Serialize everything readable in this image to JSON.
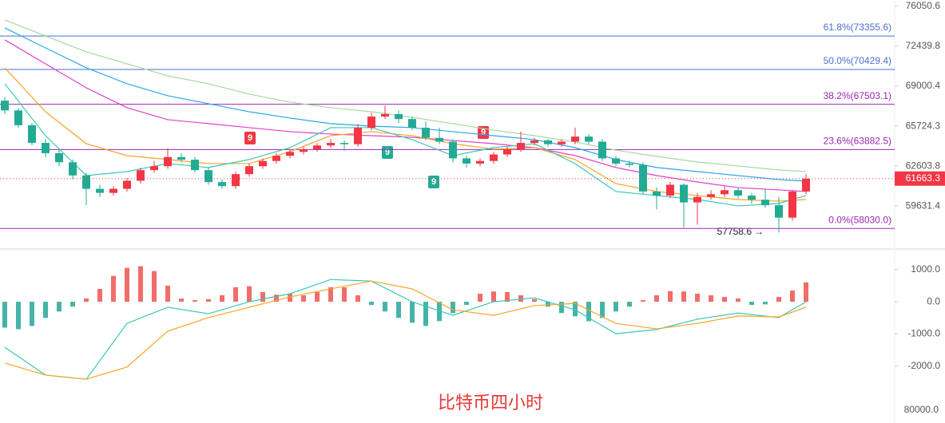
{
  "title": "比特币四小时",
  "chart_data": [
    {
      "type": "candlestick",
      "log_scale": true,
      "up_color": "#f23645",
      "down_color": "#22ab94",
      "ylim": [
        57260,
        76640
      ],
      "yticks": [
        76050.6,
        72439.8,
        69000.4,
        65724.3,
        62603.8,
        59631.4
      ],
      "fib_levels": [
        {
          "value": 73355.6,
          "label": "61.8%(73355.6)",
          "color": "#4a6fd1"
        },
        {
          "value": 70429.4,
          "label": "50.0%(70429.4)",
          "color": "#4a6fd1"
        },
        {
          "value": 67503.1,
          "label": "38.2%(67503.1)",
          "color": "#9c27b0"
        },
        {
          "value": 63882.5,
          "label": "23.6%(63882.5)",
          "color": "#9c27b0"
        },
        {
          "value": 58030.0,
          "label": "0.0%(58030.0)",
          "color": "#9c27b0"
        }
      ],
      "candles": [
        [
          67800,
          68100,
          66700,
          67000
        ],
        [
          67000,
          67200,
          65600,
          65800
        ],
        [
          65800,
          66000,
          64200,
          64400
        ],
        [
          64400,
          64700,
          63300,
          63600
        ],
        [
          63600,
          63900,
          62600,
          62900
        ],
        [
          62900,
          63100,
          61600,
          61900
        ],
        [
          61900,
          62100,
          59700,
          60900
        ],
        [
          60900,
          61200,
          60300,
          60600
        ],
        [
          60600,
          61100,
          60400,
          60900
        ],
        [
          60900,
          61700,
          60700,
          61500
        ],
        [
          61500,
          62500,
          61300,
          62300
        ],
        [
          62300,
          63000,
          62100,
          62600
        ],
        [
          62600,
          64000,
          62400,
          63300
        ],
        [
          63300,
          63600,
          62900,
          63100
        ],
        [
          63100,
          63300,
          62100,
          62300
        ],
        [
          62300,
          62500,
          61200,
          61400
        ],
        [
          61400,
          61600,
          60900,
          61100
        ],
        [
          61100,
          62200,
          60900,
          62000
        ],
        [
          62000,
          62800,
          61800,
          62600
        ],
        [
          62600,
          63200,
          62400,
          63000
        ],
        [
          63000,
          63600,
          62800,
          63400
        ],
        [
          63400,
          63900,
          63200,
          63700
        ],
        [
          63700,
          64100,
          63500,
          63900
        ],
        [
          63900,
          64400,
          63700,
          64200
        ],
        [
          64200,
          64700,
          64000,
          64400
        ],
        [
          64400,
          64600,
          63800,
          64300
        ],
        [
          64300,
          65900,
          64100,
          65600
        ],
        [
          65600,
          66800,
          65400,
          66500
        ],
        [
          66500,
          67400,
          66300,
          66700
        ],
        [
          66700,
          67000,
          66000,
          66300
        ],
        [
          66300,
          66500,
          65400,
          65600
        ],
        [
          65600,
          66100,
          64600,
          64800
        ],
        [
          64800,
          65600,
          64300,
          64500
        ],
        [
          64500,
          64700,
          62900,
          63200
        ],
        [
          63200,
          63400,
          62500,
          62800
        ],
        [
          62800,
          63200,
          62600,
          63000
        ],
        [
          63000,
          63700,
          62800,
          63500
        ],
        [
          63500,
          64100,
          63300,
          63900
        ],
        [
          63900,
          65300,
          63700,
          64400
        ],
        [
          64400,
          64800,
          64200,
          64600
        ],
        [
          64600,
          64700,
          64100,
          64300
        ],
        [
          64300,
          64700,
          64100,
          64500
        ],
        [
          64500,
          65600,
          64300,
          64900
        ],
        [
          64900,
          65100,
          64300,
          64500
        ],
        [
          64500,
          64700,
          63000,
          63200
        ],
        [
          63200,
          63400,
          62600,
          62800
        ],
        [
          62800,
          63000,
          62500,
          62700
        ],
        [
          62700,
          62900,
          60500,
          60700
        ],
        [
          60700,
          61000,
          59400,
          60400
        ],
        [
          60400,
          61400,
          60200,
          61200
        ],
        [
          61200,
          61300,
          58100,
          59900
        ],
        [
          59900,
          60600,
          58300,
          60300
        ],
        [
          60300,
          60800,
          60100,
          60500
        ],
        [
          60500,
          61100,
          60300,
          60800
        ],
        [
          60800,
          61000,
          60200,
          60400
        ],
        [
          60400,
          60600,
          59800,
          60100
        ],
        [
          60100,
          60900,
          59500,
          59700
        ],
        [
          59700,
          60300,
          57758.6,
          58800
        ],
        [
          58800,
          60800,
          58600,
          60700
        ],
        [
          60700,
          62000,
          60500,
          61663.3
        ]
      ],
      "ma_x": [
        0,
        3,
        6,
        9,
        12,
        15,
        18,
        21,
        24,
        27,
        30,
        33,
        36,
        39,
        42,
        45,
        48,
        51,
        54,
        57,
        59
      ],
      "ma_series": [
        {
          "color": "#a8d8a0",
          "values": [
            74800,
            73360,
            71950,
            70910,
            69880,
            69210,
            68340,
            67680,
            67220,
            66890,
            66440,
            65930,
            65410,
            64970,
            64470,
            63840,
            63350,
            62920,
            62620,
            62310,
            62190
          ]
        },
        {
          "color": "#2aa8e8",
          "values": [
            74080,
            72300,
            70570,
            69210,
            68210,
            67550,
            66890,
            66380,
            65930,
            65730,
            65610,
            65290,
            64970,
            64660,
            64030,
            63110,
            62500,
            62190,
            61890,
            61590,
            61470
          ]
        },
        {
          "color": "#e040c8",
          "values": [
            73010,
            70910,
            68870,
            67220,
            66250,
            65930,
            65610,
            65290,
            65100,
            64970,
            64840,
            64590,
            64340,
            64030,
            63410,
            62500,
            61890,
            61410,
            60990,
            60820,
            60700
          ]
        },
        {
          "color": "#f5a623",
          "values": [
            70570,
            66890,
            64340,
            63410,
            63110,
            62800,
            62800,
            63720,
            64970,
            65290,
            64970,
            64340,
            63910,
            64030,
            63110,
            61290,
            60700,
            60400,
            60110,
            59990,
            60110
          ]
        },
        {
          "color": "#3cc8b4",
          "values": [
            69210,
            64970,
            61890,
            62190,
            62800,
            62500,
            63110,
            64030,
            65610,
            65610,
            64660,
            63410,
            64030,
            64340,
            62800,
            60700,
            60400,
            60110,
            59650,
            59820,
            60400
          ]
        }
      ],
      "annotations": [
        "9",
        "9",
        "9",
        "9"
      ]
    },
    {
      "type": "macd",
      "up_color": "#ef5350",
      "down_color": "#26a69a",
      "ylim": [
        -2890,
        1560
      ],
      "yticks": [
        {
          "value": 1000,
          "label": "1000.0"
        },
        {
          "value": 0,
          "label": "0.0"
        },
        {
          "value": -1000,
          "label": "-1000.0"
        },
        {
          "value": -2000,
          "label": "-2000.0"
        }
      ],
      "histogram": [
        -800,
        -850,
        -750,
        -500,
        -300,
        -150,
        100,
        400,
        800,
        1050,
        1100,
        950,
        500,
        100,
        50,
        80,
        200,
        450,
        480,
        300,
        220,
        250,
        200,
        300,
        450,
        450,
        200,
        -100,
        -300,
        -500,
        -650,
        -750,
        -600,
        -350,
        -100,
        250,
        320,
        300,
        200,
        80,
        -150,
        -350,
        -450,
        -600,
        -500,
        -300,
        -150,
        50,
        200,
        330,
        320,
        250,
        200,
        150,
        100,
        -100,
        -80,
        150,
        350,
        600
      ],
      "line_x": [
        0,
        3,
        6,
        9,
        12,
        15,
        18,
        21,
        24,
        27,
        30,
        33,
        36,
        39,
        42,
        45,
        48,
        51,
        54,
        57,
        59
      ],
      "series": [
        {
          "color": "#3cc8b4",
          "values": [
            -1410,
            -2270,
            -2400,
            -670,
            -170,
            -370,
            0,
            250,
            690,
            640,
            0,
            -420,
            0,
            120,
            -250,
            -990,
            -860,
            -540,
            -350,
            -490,
            0
          ]
        },
        {
          "color": "#f5a623",
          "values": [
            -1900,
            -2270,
            -2400,
            -2020,
            -910,
            -490,
            -170,
            150,
            400,
            640,
            400,
            -250,
            -420,
            -120,
            -50,
            -670,
            -840,
            -670,
            -440,
            -470,
            -170
          ]
        }
      ],
      "volume_label": "80000.0"
    }
  ]
}
